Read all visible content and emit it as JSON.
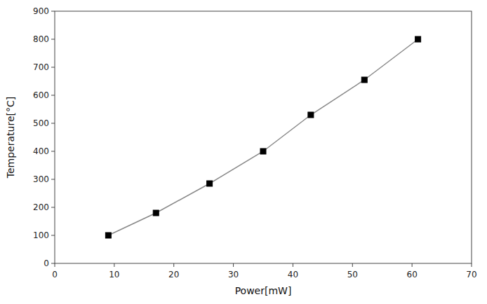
{
  "chart_data": {
    "type": "line",
    "x": [
      9,
      17,
      26,
      35,
      43,
      52,
      61
    ],
    "values": [
      100,
      180,
      285,
      400,
      530,
      655,
      800
    ],
    "xlabel": "Power[mW]",
    "ylabel": "Temperature[°C]",
    "xlim": [
      0,
      70
    ],
    "ylim": [
      0,
      900
    ],
    "xticks": [
      0,
      10,
      20,
      30,
      40,
      50,
      60,
      70
    ],
    "yticks": [
      0,
      100,
      200,
      300,
      400,
      500,
      600,
      700,
      800,
      900
    ],
    "color": "#888888",
    "colors": [
      "#000000",
      "#000000",
      "#000000",
      "#000000",
      "#000000",
      "#000000",
      "#000000"
    ],
    "marker": "square",
    "line_style": "solid",
    "grid": false
  }
}
